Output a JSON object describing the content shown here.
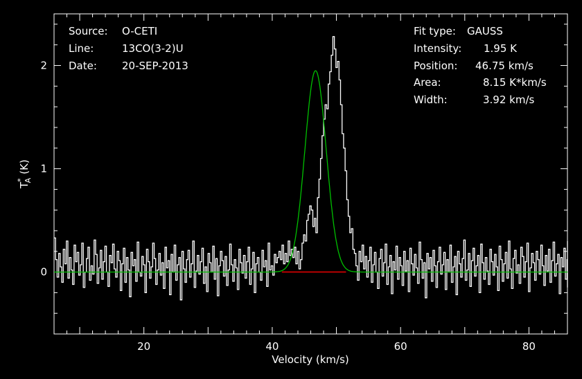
{
  "colors": {
    "background": "#000000",
    "frame": "#ffffff",
    "spectrum": "#ffffff",
    "fit": "#00c000",
    "baseline": "#ff0000"
  },
  "header_left": {
    "source_label": "Source:",
    "source_value": "O-CETI",
    "line_label": "Line:",
    "line_value": "13CO(3-2)U",
    "date_label": "Date:",
    "date_value": "20-SEP-2013"
  },
  "header_right": {
    "fit_type_label": "Fit type:",
    "fit_type_value": "GAUSS",
    "intensity_label": "Intensity:",
    "intensity_value": "1.95 K",
    "position_label": "Position:",
    "position_value": "46.75 km/s",
    "area_label": "Area:",
    "area_value": "8.15 K*km/s",
    "width_label": "Width:",
    "width_value": "3.92 km/s"
  },
  "chart_data": {
    "type": "line",
    "xlabel": "Velocity (km/s)",
    "ylabel_main": "T",
    "ylabel_super": "*",
    "ylabel_sub": "A",
    "ylabel_unit": "(K)",
    "xlim": [
      6,
      86
    ],
    "ylim": [
      -0.6,
      2.5
    ],
    "x_ticks": [
      20,
      40,
      60,
      80
    ],
    "x_tick_labels": [
      "20",
      "40",
      "60",
      "80"
    ],
    "y_ticks": [
      0,
      1,
      2
    ],
    "y_tick_labels": [
      "0",
      "1",
      "2"
    ],
    "grid": false,
    "series": [
      {
        "style": "histogram",
        "color": "#ffffff"
      },
      {
        "style": "gaussian-fit",
        "color": "#00c000",
        "amplitude": 1.95,
        "center": 46.75,
        "fwhm": 3.92
      },
      {
        "style": "baseline",
        "color": "#ff0000",
        "x": [
          41.5,
          51.5
        ],
        "y": [
          0,
          0
        ]
      }
    ],
    "spectrum": {
      "x_start": 6.0,
      "x_step": 0.24,
      "y": [
        0.33,
        0.12,
        -0.05,
        0.18,
        0.05,
        -0.1,
        0.22,
        0.08,
        0.3,
        -0.06,
        0.14,
        0.02,
        -0.12,
        0.26,
        0.1,
        0.19,
        -0.03,
        0.07,
        0.28,
        -0.15,
        0.0,
        0.13,
        0.24,
        -0.08,
        0.06,
        -0.02,
        0.31,
        0.17,
        -0.11,
        0.04,
        0.21,
        -0.07,
        0.1,
        0.25,
        0.0,
        -0.14,
        0.16,
        0.09,
        0.27,
        0.03,
        -0.05,
        0.2,
        0.11,
        -0.18,
        0.08,
        0.23,
        -0.1,
        0.14,
        0.02,
        -0.24,
        0.19,
        0.06,
        0.12,
        -0.09,
        0.29,
        0.0,
        -0.04,
        0.15,
        0.07,
        -0.2,
        0.22,
        0.1,
        -0.06,
        0.05,
        0.28,
        0.13,
        -0.12,
        0.02,
        0.18,
        -0.03,
        0.09,
        -0.16,
        0.24,
        0.04,
        0.11,
        -0.22,
        0.17,
        0.0,
        0.26,
        -0.08,
        0.07,
        0.14,
        -0.27,
        0.2,
        0.03,
        -0.1,
        0.12,
        0.21,
        -0.05,
        0.08,
        0.3,
        -0.15,
        0.01,
        0.16,
        -0.02,
        0.1,
        0.23,
        -0.11,
        0.05,
        -0.19,
        0.18,
        0.09,
        0.0,
        0.25,
        -0.07,
        0.13,
        -0.23,
        0.06,
        0.2,
        0.11,
        -0.04,
        0.15,
        -0.13,
        0.02,
        0.27,
        0.07,
        -0.09,
        0.12,
        0.04,
        -0.17,
        0.22,
        0.09,
        -0.01,
        0.16,
        -0.06,
        0.1,
        0.24,
        -0.12,
        0.03,
        0.19,
        -0.2,
        0.08,
        0.14,
        0.0,
        -0.08,
        0.21,
        0.05,
        0.11,
        -0.14,
        0.28,
        0.02,
        0.06,
        -0.03,
        0.17,
        0.09,
        0.14,
        0.2,
        0.12,
        0.26,
        0.08,
        0.18,
        0.1,
        0.3,
        0.16,
        0.22,
        0.14,
        0.24,
        0.08,
        0.2,
        0.03,
        0.12,
        0.28,
        0.36,
        0.3,
        0.5,
        0.56,
        0.64,
        0.6,
        0.44,
        0.52,
        0.38,
        0.72,
        0.9,
        1.1,
        1.32,
        1.48,
        1.62,
        1.58,
        1.82,
        1.94,
        2.1,
        2.28,
        2.16,
        1.98,
        2.04,
        1.86,
        1.62,
        1.34,
        1.2,
        0.98,
        0.7,
        0.54,
        0.38,
        0.42,
        0.22,
        0.18,
        0.06,
        -0.08,
        0.2,
        0.1,
        0.26,
        0.03,
        0.15,
        -0.05,
        0.11,
        0.24,
        -0.1,
        0.07,
        0.19,
        0.0,
        -0.16,
        0.13,
        0.22,
        -0.04,
        0.09,
        0.27,
        -0.12,
        0.05,
        0.16,
        -0.21,
        0.1,
        0.02,
        0.25,
        -0.07,
        0.14,
        0.06,
        -0.13,
        0.2,
        0.01,
        0.11,
        -0.19,
        0.23,
        0.08,
        -0.03,
        0.17,
        0.04,
        -0.11,
        0.29,
        0.12,
        -0.06,
        0.09,
        -0.25,
        0.18,
        0.03,
        0.14,
        -0.09,
        0.21,
        0.06,
        -0.15,
        0.1,
        0.24,
        -0.02,
        0.07,
        0.19,
        -0.17,
        0.12,
        0.0,
        0.26,
        -0.1,
        0.05,
        0.15,
        -0.22,
        0.2,
        0.08,
        -0.05,
        0.13,
        0.31,
        -0.08,
        0.02,
        0.18,
        -0.14,
        0.11,
        0.23,
        -0.04,
        0.06,
        0.16,
        -0.2,
        0.27,
        0.09,
        -0.07,
        0.14,
        0.01,
        -0.12,
        0.22,
        0.1,
        -0.03,
        0.17,
        0.05,
        -0.18,
        0.25,
        0.12,
        -0.09,
        0.08,
        0.19,
        -0.06,
        0.3,
        0.03,
        -0.16,
        0.13,
        0.21,
        -0.01,
        0.07,
        -0.11,
        0.24,
        0.15,
        -0.05,
        0.1,
        0.28,
        -0.19,
        0.04,
        0.18,
        0.09,
        -0.08,
        0.2,
        0.12,
        -0.02,
        0.26,
        0.06,
        -0.13,
        0.16,
        0.01,
        0.22,
        -0.1,
        0.11,
        0.29,
        -0.04,
        0.08,
        0.17,
        -0.21,
        0.14,
        0.05,
        0.23,
        -0.07,
        0.12,
        0.3,
        0.02,
        -0.15,
        0.19,
        0.1,
        -0.03
      ]
    }
  }
}
